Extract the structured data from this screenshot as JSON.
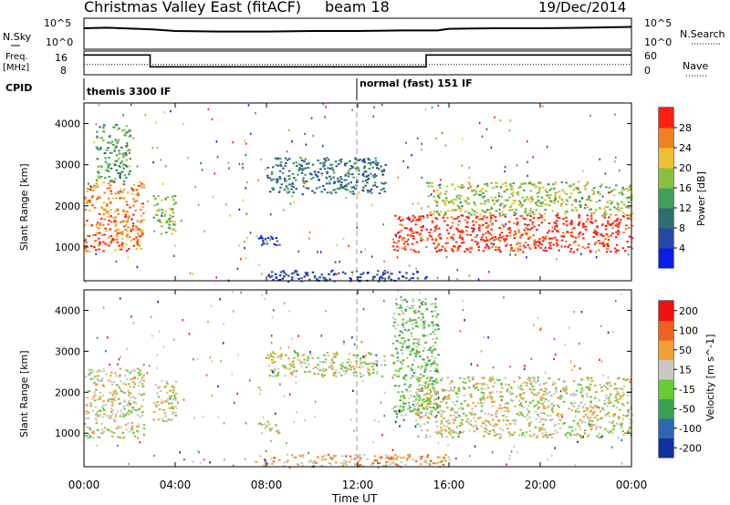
{
  "header": {
    "title": "Christmas Valley East (fitACF)",
    "beam": "beam 18",
    "date": "19/Dec/2014"
  },
  "noise_panel": {
    "left_label": "N.Sky",
    "right_label": "N.Search",
    "ticks_left": [
      "10^5",
      "10^0"
    ],
    "ticks_right": [
      "10^5",
      "10^0"
    ]
  },
  "freq_panel": {
    "left_label_line1": "Freq.",
    "left_label_line2": "[MHz]",
    "right_label": "Nave",
    "ticks_left": [
      "16",
      "8"
    ],
    "ticks_right": [
      "60",
      "0"
    ]
  },
  "cpid": {
    "label": "CPID",
    "modes": [
      "themis 3300 IF",
      "normal (fast) 151 IF"
    ]
  },
  "power_panel": {
    "ylabel": "Slant Range [km]",
    "yticks": [
      "4000",
      "3000",
      "2000",
      "1000"
    ],
    "colorbar_label": "Power [dB]",
    "colorbar_ticks": [
      "28",
      "24",
      "20",
      "16",
      "12",
      "8",
      "4"
    ]
  },
  "velocity_panel": {
    "ylabel": "Slant Range [km]",
    "yticks": [
      "4000",
      "3000",
      "2000",
      "1000"
    ],
    "colorbar_label": "Velocity [m s^-1]",
    "colorbar_ticks": [
      "200",
      "100",
      "50",
      "15",
      "-15",
      "-50",
      "-100",
      "-200"
    ]
  },
  "xaxis": {
    "label": "Time UT",
    "ticks": [
      "00:00",
      "04:00",
      "08:00",
      "12:00",
      "16:00",
      "20:00",
      "00:00"
    ]
  },
  "colors": {
    "power_scale": [
      "#0a1ee6",
      "#2848a8",
      "#2f6e6e",
      "#3fa05a",
      "#88c040",
      "#f0c030",
      "#f08020",
      "#ff2010"
    ],
    "velocity_scale": [
      "#1030a0",
      "#2b68b0",
      "#3aa050",
      "#66cc33",
      "#c8c8c0",
      "#f0a030",
      "#f06020",
      "#f01010"
    ]
  },
  "chart_data": [
    {
      "type": "line",
      "title": "N.Sky / N.Search",
      "x_unit": "hours UT",
      "xlim": [
        0,
        24
      ],
      "series": [
        {
          "name": "N.Sky",
          "x": [
            0,
            1,
            3,
            4,
            6,
            8,
            10,
            12,
            14,
            15.5,
            16,
            18,
            20,
            22,
            24
          ],
          "y": [
            0.7,
            0.72,
            0.66,
            0.6,
            0.58,
            0.58,
            0.6,
            0.6,
            0.62,
            0.62,
            0.68,
            0.7,
            0.7,
            0.72,
            0.75
          ]
        }
      ]
    },
    {
      "type": "line",
      "title": "Freq [MHz]",
      "xlim": [
        0,
        24
      ],
      "ylim": [
        6,
        18
      ],
      "series": [
        {
          "name": "Freq.",
          "x": [
            0,
            2.9,
            2.9,
            15.0,
            15.0,
            24
          ],
          "y": [
            16,
            16,
            10,
            10,
            16,
            16
          ]
        },
        {
          "name": "Nave",
          "x": [
            0,
            24
          ],
          "y": [
            11.2,
            11.2
          ]
        }
      ]
    },
    {
      "type": "heatmap",
      "title": "Power [dB]",
      "xlim": [
        0,
        24
      ],
      "ylim": [
        180,
        4500
      ],
      "regions": [
        {
          "t0": 0.0,
          "t1": 2.6,
          "r0": 900,
          "r1": 2600,
          "level": 6
        },
        {
          "t0": 3.0,
          "t1": 4.0,
          "r0": 1300,
          "r1": 2300,
          "level": 4
        },
        {
          "t0": 0.5,
          "t1": 2.0,
          "r0": 2600,
          "r1": 4000,
          "level": 3
        },
        {
          "t0": 7.6,
          "t1": 8.6,
          "r0": 1000,
          "r1": 1300,
          "level": 1
        },
        {
          "t0": 8.0,
          "t1": 13.2,
          "r0": 2300,
          "r1": 3200,
          "level": 2
        },
        {
          "t0": 13.5,
          "t1": 24.0,
          "r0": 900,
          "r1": 1800,
          "level": 7
        },
        {
          "t0": 15.0,
          "t1": 24.0,
          "r0": 1800,
          "r1": 2600,
          "level": 4
        },
        {
          "t0": 8.0,
          "t1": 15.0,
          "r0": 180,
          "r1": 450,
          "level": 1
        }
      ]
    },
    {
      "type": "heatmap",
      "title": "Velocity [m s^-1]",
      "xlim": [
        0,
        24
      ],
      "ylim": [
        180,
        4500
      ],
      "regions": [
        {
          "t0": 0.0,
          "t1": 2.6,
          "r0": 900,
          "r1": 2600,
          "level": 4
        },
        {
          "t0": 3.0,
          "t1": 4.0,
          "r0": 1300,
          "r1": 2300,
          "level": 4
        },
        {
          "t0": 7.6,
          "t1": 8.6,
          "r0": 1000,
          "r1": 1300,
          "level": 4
        },
        {
          "t0": 8.0,
          "t1": 13.2,
          "r0": 2400,
          "r1": 3000,
          "level": 4
        },
        {
          "t0": 13.5,
          "t1": 15.5,
          "r0": 1400,
          "r1": 4300,
          "level": 3
        },
        {
          "t0": 14.5,
          "t1": 24.0,
          "r0": 900,
          "r1": 2400,
          "level": 4
        },
        {
          "t0": 7.5,
          "t1": 16.0,
          "r0": 180,
          "r1": 500,
          "level": 5
        }
      ]
    }
  ]
}
